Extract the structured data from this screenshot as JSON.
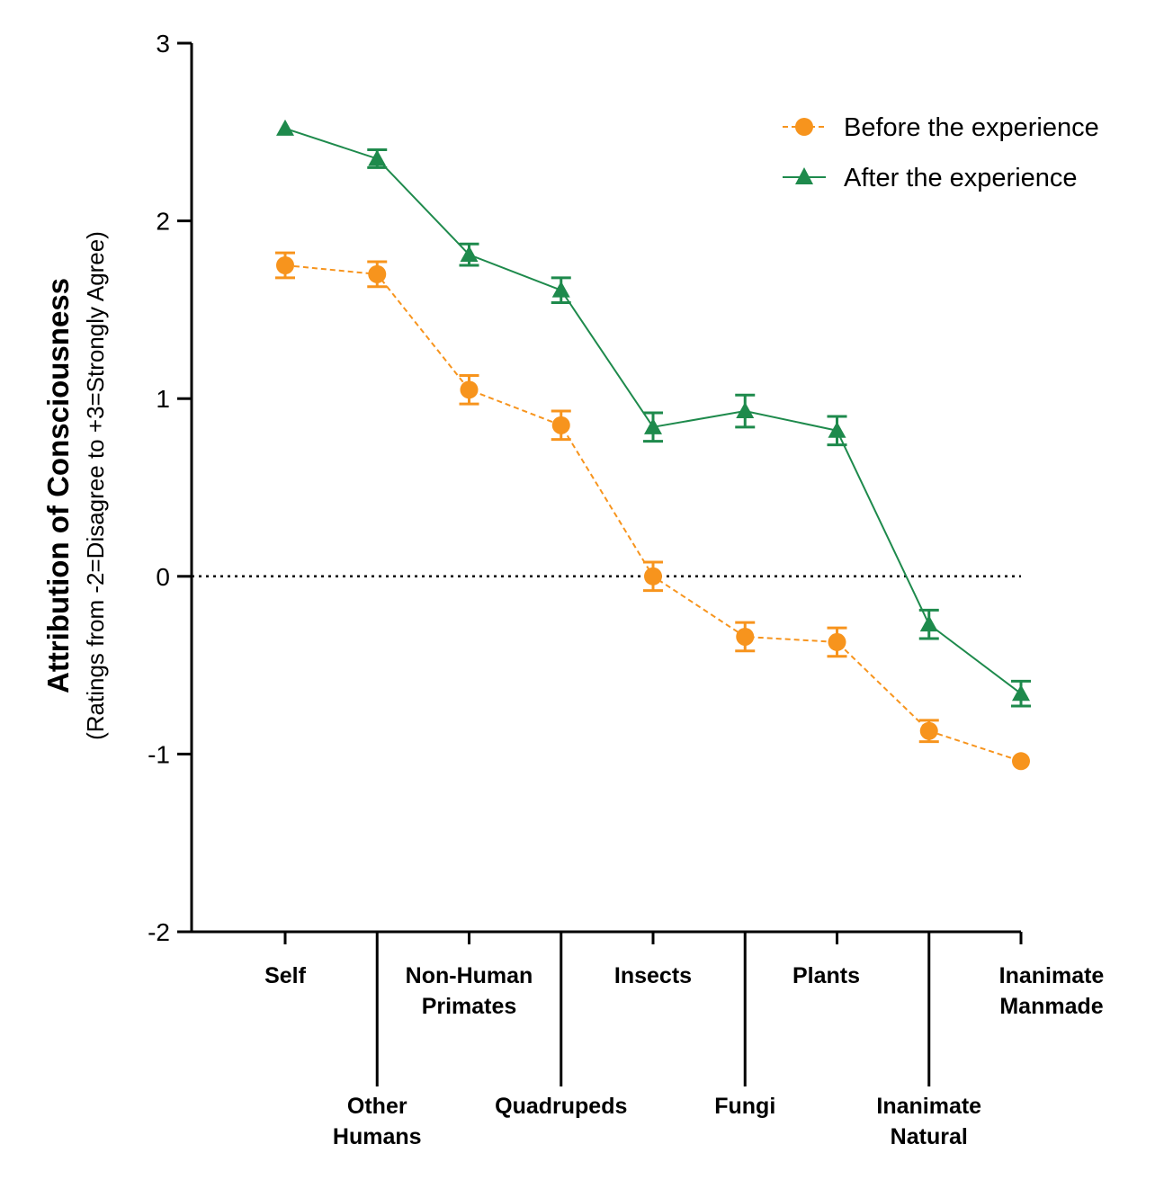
{
  "chart_data": {
    "type": "line",
    "title": "",
    "ylabel": "Attribution of Consciousness",
    "ylabel_sub": "(Ratings from -2=Disagree to +3=Strongly Agree)",
    "xlabel": "",
    "ylim": [
      -2,
      3
    ],
    "yticks": [
      "3",
      "2",
      "1",
      "0",
      "-1",
      "-2"
    ],
    "reference_line": 0,
    "categories": [
      [
        "Self"
      ],
      [
        "Other",
        "Humans"
      ],
      [
        "Non-Human",
        "Primates"
      ],
      [
        "Quadrupeds"
      ],
      [
        "Insects"
      ],
      [
        "Fungi"
      ],
      [
        "Plants"
      ],
      [
        "Inanimate",
        "Natural"
      ],
      [
        "Inanimate",
        "Manmade"
      ]
    ],
    "series": [
      {
        "name": "Before the experience",
        "color": "#F7941D",
        "marker": "circle",
        "line_style": "dashed",
        "values": [
          1.75,
          1.7,
          1.05,
          0.85,
          0.0,
          -0.34,
          -0.37,
          -0.87,
          -1.04
        ],
        "errors": [
          0.07,
          0.07,
          0.08,
          0.08,
          0.08,
          0.08,
          0.08,
          0.06,
          0.0
        ]
      },
      {
        "name": "After the experience",
        "color": "#1E8A4C",
        "marker": "triangle",
        "line_style": "solid",
        "values": [
          2.52,
          2.35,
          1.81,
          1.61,
          0.84,
          0.93,
          0.82,
          -0.27,
          -0.66
        ],
        "errors": [
          0.0,
          0.05,
          0.06,
          0.07,
          0.08,
          0.09,
          0.08,
          0.08,
          0.07
        ]
      }
    ],
    "legend_position": "top-right"
  }
}
